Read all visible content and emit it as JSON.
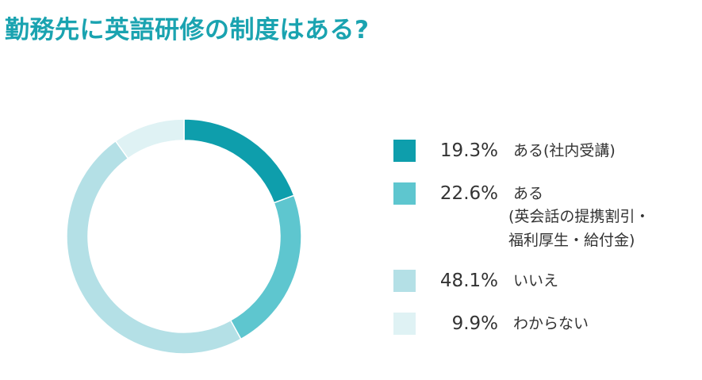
{
  "title": "勤務先に英語研修の制度はある?",
  "chart_data": {
    "type": "donut",
    "slices": [
      {
        "label": "ある(社内受講)",
        "value": 19.3,
        "display": "19.3%",
        "color": "#0e9eac",
        "sublines": []
      },
      {
        "label": "ある",
        "value": 22.6,
        "display": "22.6%",
        "color": "#5ec6cf",
        "sublines": [
          "(英会話の提携割引・",
          " 福利厚生・給付金)"
        ]
      },
      {
        "label": "いいえ",
        "value": 48.1,
        "display": "48.1%",
        "color": "#b4e0e6",
        "sublines": []
      },
      {
        "label": "わからない",
        "value": 9.9,
        "display": "9.9%",
        "color": "#dff2f4",
        "sublines": []
      }
    ],
    "start_angle": "12 o'clock",
    "direction": "clockwise",
    "legend_position": "right"
  }
}
